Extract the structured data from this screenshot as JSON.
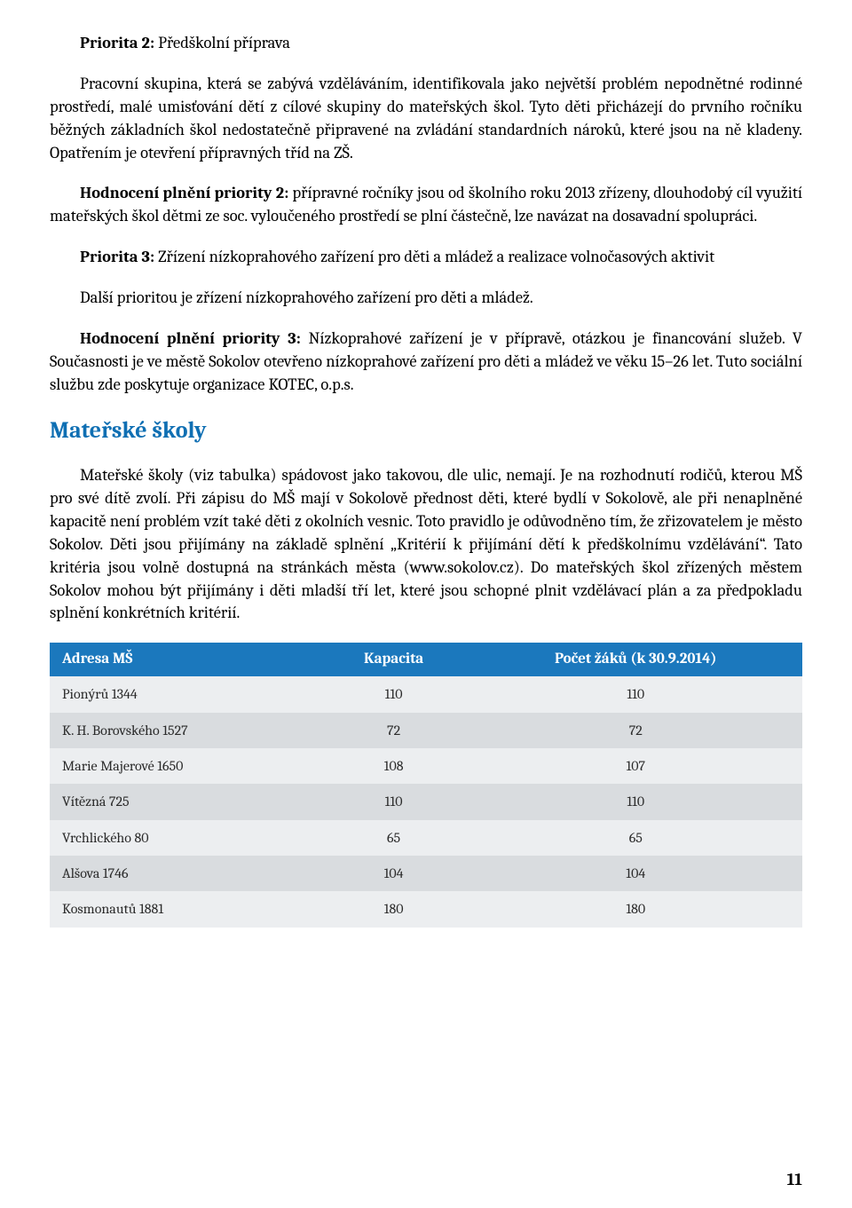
{
  "priorita2": {
    "titleLabel": "Priorita 2: ",
    "titleText": "Předškolní příprava",
    "body": "Pracovní skupina, která se zabývá vzděláváním, identifikovala jako největší problém nepodnětné rodinné prostředí, malé umisťování dětí z cílové skupiny do mateřských škol. Tyto děti přicházejí do prvního ročníku běžných základních škol nedostatečně připravené na zvládání standardních nároků, které jsou na ně kladeny. Opatřením je otevření přípravných tříd na ZŠ.",
    "evalLabel": "Hodnocení plnění priority 2: ",
    "evalText": "přípravné ročníky jsou od školního roku 2013 zřízeny, dlouhodobý cíl využití mateřských škol dětmi ze soc. vyloučeného prostředí se plní částečně, lze navázat na dosavadní spolupráci."
  },
  "priorita3": {
    "titleLabel": "Priorita 3: ",
    "titleText": "Zřízení nízkoprahového zařízení pro děti a mládež a realizace volnočasových aktivit",
    "body": "Další prioritou je zřízení nízkoprahového zařízení pro děti a mládež.",
    "evalLabel": "Hodnocení plnění priority 3: ",
    "evalText": "Nízkoprahové zařízení je v přípravě, otázkou je financování služeb. V Současnosti je ve městě Sokolov otevřeno nízkoprahové zařízení pro děti a mládež ve věku 15–26 let. Tuto sociální službu zde poskytuje organizace KOTEC, o.p.s."
  },
  "section": {
    "heading": "Mateřské školy",
    "body": "Mateřské školy (viz tabulka) spádovost jako takovou, dle ulic, nemají. Je na rozhodnutí rodičů, kterou MŠ pro své dítě zvolí. Při zápisu do MŠ mají v Sokolově přednost děti, které bydlí v Sokolově, ale při nenaplněné kapacitě není problém vzít také děti z okolních vesnic. Toto pravidlo je odůvodněno tím, že zřizovatelem je město Sokolov. Děti jsou přijímány na základě splnění „Kritérií k přijímání dětí k předškolnímu vzdělávání“. Tato kritéria jsou volně dostupná na stránkách města (www.sokolov.cz). Do mateřských škol zřízených městem Sokolov mohou být přijímány i děti mladší tří let, které jsou schopné plnit vzdělávací plán a za předpokladu splnění konkrétních kritérií."
  },
  "table": {
    "colors": {
      "headerBg": "#1b78bd",
      "headerText": "#ffffff",
      "rowOdd": "#eceef0",
      "rowEven": "#d9dcdf"
    },
    "columns": [
      {
        "label": "Adresa MŠ",
        "align": "left"
      },
      {
        "label": "Kapacita",
        "align": "center"
      },
      {
        "label": "Počet žáků (k 30.9.2014)",
        "align": "center"
      }
    ],
    "rows": [
      [
        "Pionýrů 1344",
        "110",
        "110"
      ],
      [
        "K. H. Borovského 1527",
        "72",
        "72"
      ],
      [
        "Marie Majerové 1650",
        "108",
        "107"
      ],
      [
        "Vítězná 725",
        "110",
        "110"
      ],
      [
        "Vrchlického 80",
        "65",
        "65"
      ],
      [
        "Alšova 1746",
        "104",
        "104"
      ],
      [
        "Kosmonautů 1881",
        "180",
        "180"
      ]
    ]
  },
  "pageNumber": "11"
}
